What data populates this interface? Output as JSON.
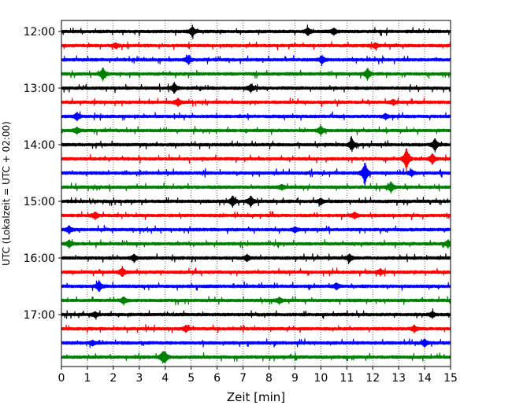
{
  "chart_data": {
    "type": "line",
    "title": "",
    "xlabel": "Zeit  [min]",
    "ylabel": "UTC (Lokalzeit = UTC + 02:00)",
    "xlim": [
      0,
      15
    ],
    "xticks": [
      "0",
      "1",
      "2",
      "3",
      "4",
      "5",
      "6",
      "7",
      "8",
      "9",
      "10",
      "11",
      "12",
      "13",
      "14",
      "15"
    ],
    "y_hour_labels": [
      "12:00",
      "13:00",
      "14:00",
      "15:00",
      "16:00",
      "17:00"
    ],
    "grid": "vertical dotted lines at each minute",
    "line_colors": [
      "#000000",
      "#ff0000",
      "#0000ff",
      "#008000"
    ],
    "traces": [
      {
        "start": "12:00",
        "events": [
          {
            "t": 5.05,
            "amp": 0.9
          },
          {
            "t": 9.5,
            "amp": 0.6
          },
          {
            "t": 10.5,
            "amp": 0.5
          }
        ]
      },
      {
        "start": "12:15",
        "events": [
          {
            "t": 2.1,
            "amp": 0.4
          },
          {
            "t": 12.1,
            "amp": 0.4
          }
        ]
      },
      {
        "start": "12:30",
        "events": [
          {
            "t": 4.9,
            "amp": 0.7
          },
          {
            "t": 10.05,
            "amp": 0.6
          }
        ]
      },
      {
        "start": "12:45",
        "events": [
          {
            "t": 1.6,
            "amp": 1.1
          },
          {
            "t": 11.8,
            "amp": 1.0
          }
        ]
      },
      {
        "start": "13:00",
        "events": [
          {
            "t": 4.35,
            "amp": 0.9
          },
          {
            "t": 7.3,
            "amp": 0.6
          }
        ]
      },
      {
        "start": "13:15",
        "events": [
          {
            "t": 4.5,
            "amp": 0.6
          },
          {
            "t": 12.8,
            "amp": 0.4
          }
        ]
      },
      {
        "start": "13:30",
        "events": [
          {
            "t": 0.6,
            "amp": 0.6
          },
          {
            "t": 12.5,
            "amp": 0.4
          }
        ]
      },
      {
        "start": "13:45",
        "events": [
          {
            "t": 0.6,
            "amp": 0.5
          },
          {
            "t": 10.0,
            "amp": 0.7
          }
        ]
      },
      {
        "start": "14:00",
        "events": [
          {
            "t": 11.2,
            "amp": 1.0
          },
          {
            "t": 14.4,
            "amp": 1.1
          }
        ]
      },
      {
        "start": "14:15",
        "events": [
          {
            "t": 13.3,
            "amp": 2.0
          },
          {
            "t": 14.3,
            "amp": 0.9
          }
        ]
      },
      {
        "start": "14:30",
        "events": [
          {
            "t": 11.7,
            "amp": 2.0
          },
          {
            "t": 13.5,
            "amp": 0.5
          }
        ]
      },
      {
        "start": "14:45",
        "events": [
          {
            "t": 12.7,
            "amp": 0.9
          },
          {
            "t": 8.5,
            "amp": 0.4
          }
        ]
      },
      {
        "start": "15:00",
        "events": [
          {
            "t": 6.6,
            "amp": 0.9
          },
          {
            "t": 7.3,
            "amp": 0.9
          },
          {
            "t": 10.0,
            "amp": 0.5
          }
        ]
      },
      {
        "start": "15:15",
        "events": [
          {
            "t": 1.3,
            "amp": 0.6
          },
          {
            "t": 11.3,
            "amp": 0.5
          }
        ]
      },
      {
        "start": "15:30",
        "events": [
          {
            "t": 0.3,
            "amp": 0.6
          },
          {
            "t": 9.0,
            "amp": 0.4
          }
        ]
      },
      {
        "start": "15:45",
        "events": [
          {
            "t": 0.3,
            "amp": 0.6
          },
          {
            "t": 14.9,
            "amp": 0.6
          }
        ]
      },
      {
        "start": "16:00",
        "events": [
          {
            "t": 2.8,
            "amp": 0.6
          },
          {
            "t": 7.15,
            "amp": 0.5
          },
          {
            "t": 11.1,
            "amp": 0.6
          }
        ]
      },
      {
        "start": "16:15",
        "events": [
          {
            "t": 2.35,
            "amp": 0.8
          },
          {
            "t": 12.3,
            "amp": 0.5
          }
        ]
      },
      {
        "start": "16:30",
        "events": [
          {
            "t": 1.45,
            "amp": 0.9
          },
          {
            "t": 10.6,
            "amp": 0.5
          }
        ]
      },
      {
        "start": "16:45",
        "events": [
          {
            "t": 2.4,
            "amp": 0.6
          },
          {
            "t": 8.4,
            "amp": 0.5
          }
        ]
      },
      {
        "start": "17:00",
        "events": [
          {
            "t": 1.3,
            "amp": 0.4
          },
          {
            "t": 14.3,
            "amp": 0.5
          }
        ]
      },
      {
        "start": "17:15",
        "events": [
          {
            "t": 4.8,
            "amp": 0.5
          },
          {
            "t": 13.6,
            "amp": 0.5
          }
        ]
      },
      {
        "start": "17:30",
        "events": [
          {
            "t": 1.2,
            "amp": 0.4
          },
          {
            "t": 14.0,
            "amp": 0.6
          }
        ]
      },
      {
        "start": "17:45",
        "events": [
          {
            "t": 3.9,
            "amp": 0.7
          },
          {
            "t": 4.0,
            "amp": 0.7
          }
        ]
      }
    ]
  }
}
